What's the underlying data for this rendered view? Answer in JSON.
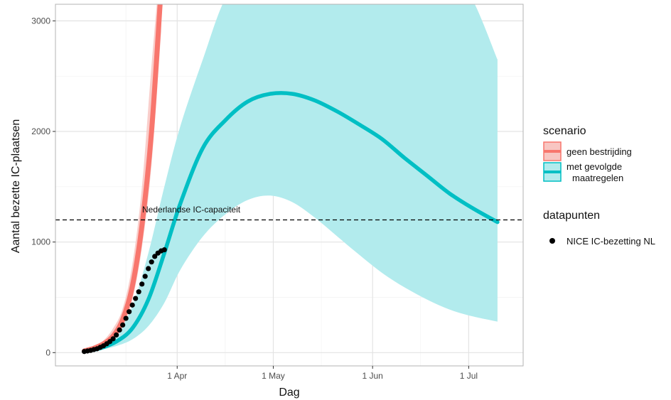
{
  "chart_data": {
    "type": "line",
    "xlabel": "Dag",
    "ylabel": "Aantal bezette IC-plaatsen",
    "x_ticks": [
      "1 Apr",
      "1 May",
      "1 Jun",
      "1 Jul"
    ],
    "y_ticks": [
      "0",
      "1000",
      "2000",
      "3000"
    ],
    "ylim": [
      -120,
      3150
    ],
    "grid": true,
    "legend_position": "right",
    "reference_line": {
      "value": 1200,
      "label": "Nederlandse IC-capaciteit"
    },
    "series": [
      {
        "name": "geen bestrijding",
        "color": "#f8766d",
        "x": [
          "2020-03-03",
          "2020-03-06",
          "2020-03-09",
          "2020-03-12",
          "2020-03-15",
          "2020-03-18",
          "2020-03-21",
          "2020-03-24",
          "2020-03-27"
        ],
        "values": [
          15,
          40,
          80,
          150,
          300,
          600,
          1150,
          2000,
          3300
        ],
        "band_low": [
          12,
          30,
          60,
          110,
          230,
          480,
          950,
          1700,
          2900
        ],
        "band_high": [
          20,
          50,
          110,
          220,
          400,
          800,
          1500,
          2600,
          3600
        ]
      },
      {
        "name": "met gevolgde maatregelen",
        "color": "#00bfc4",
        "x": [
          "2020-03-03",
          "2020-03-08",
          "2020-03-13",
          "2020-03-18",
          "2020-03-23",
          "2020-03-28",
          "2020-04-02",
          "2020-04-09",
          "2020-04-16",
          "2020-04-23",
          "2020-04-30",
          "2020-05-07",
          "2020-05-14",
          "2020-05-21",
          "2020-05-28",
          "2020-06-04",
          "2020-06-11",
          "2020-06-18",
          "2020-06-25",
          "2020-07-02",
          "2020-07-10"
        ],
        "values": [
          10,
          40,
          100,
          220,
          480,
          900,
          1350,
          1850,
          2100,
          2270,
          2340,
          2340,
          2280,
          2180,
          2060,
          1930,
          1760,
          1600,
          1440,
          1310,
          1180
        ],
        "band_low": [
          8,
          25,
          60,
          120,
          240,
          450,
          750,
          1050,
          1250,
          1380,
          1420,
          1360,
          1220,
          1050,
          880,
          720,
          590,
          480,
          390,
          330,
          280
        ],
        "band_high": [
          15,
          60,
          170,
          420,
          900,
          1500,
          2050,
          2650,
          3200,
          3400,
          3400,
          3400,
          3400,
          3400,
          3400,
          3400,
          3400,
          3400,
          3400,
          3200,
          2650
        ]
      }
    ],
    "points": {
      "name": "NICE IC-bezetting NL",
      "x": [
        "2020-03-03",
        "2020-03-04",
        "2020-03-05",
        "2020-03-06",
        "2020-03-07",
        "2020-03-08",
        "2020-03-09",
        "2020-03-10",
        "2020-03-11",
        "2020-03-12",
        "2020-03-13",
        "2020-03-14",
        "2020-03-15",
        "2020-03-16",
        "2020-03-17",
        "2020-03-18",
        "2020-03-19",
        "2020-03-20",
        "2020-03-21",
        "2020-03-22",
        "2020-03-23",
        "2020-03-24",
        "2020-03-25",
        "2020-03-26",
        "2020-03-27",
        "2020-03-28"
      ],
      "values": [
        10,
        15,
        20,
        28,
        35,
        48,
        62,
        80,
        100,
        125,
        160,
        205,
        250,
        310,
        370,
        430,
        490,
        550,
        620,
        690,
        760,
        820,
        870,
        900,
        920,
        930
      ]
    }
  },
  "legend": {
    "scenario_title": "scenario",
    "scenario_items": [
      {
        "label_line1": "geen bestrijding",
        "label_line2": "",
        "fill": "#f8c6c2",
        "stroke": "#f8766d"
      },
      {
        "label_line1": "met gevolgde",
        "label_line2": "maatregelen",
        "fill": "#b2ebed",
        "stroke": "#00bfc4"
      }
    ],
    "points_title": "datapunten",
    "points_item": {
      "label": "NICE IC-bezetting NL"
    }
  }
}
